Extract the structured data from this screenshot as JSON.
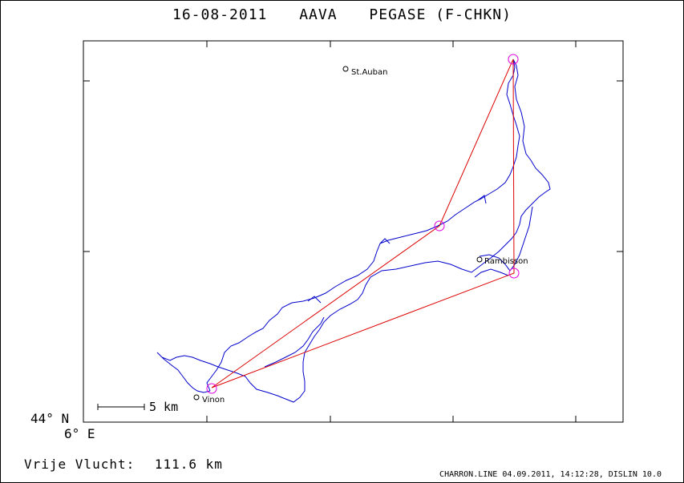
{
  "title": {
    "date": "16-08-2011",
    "club": "AAVA",
    "glider": "PEGASE (F-CHKN)"
  },
  "map": {
    "latitude_label": "44° N",
    "longitude_label": "6° E",
    "scale_bar_label": "5 km",
    "places": [
      {
        "name": "St.Auban"
      },
      {
        "name": "Rambisson"
      },
      {
        "name": "Vinon"
      }
    ],
    "colors": {
      "track": "#0000cc",
      "task": "#dd0000",
      "turnpoint": "#e000e0",
      "place": "#000000"
    }
  },
  "summary": {
    "distance_label": "Vrije Vlucht:",
    "distance_value": "111.6 km"
  },
  "footer": "CHARRON.LINE 04.09.2011, 14:12:28, DISLIN 10.0"
}
